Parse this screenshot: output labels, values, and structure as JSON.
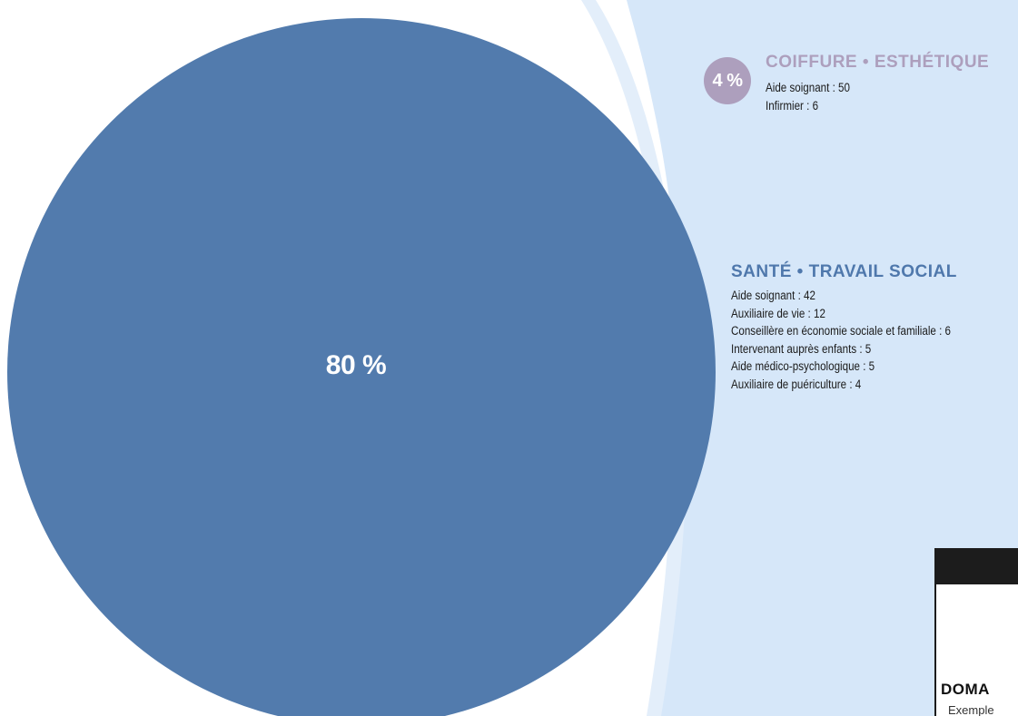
{
  "colors": {
    "main_blue": "#527bad",
    "lavender": "#ad9fbd",
    "panel_light_blue": "#d6e7f9",
    "background": "#ffffff"
  },
  "chart_data": {
    "type": "pie",
    "slices": [
      {
        "label": "SANTÉ • TRAVAIL SOCIAL",
        "value": 80,
        "display": "80 %",
        "color": "#527bad"
      },
      {
        "label": "COIFFURE • ESTHÉTIQUE",
        "value": 4,
        "display": "4 %",
        "color": "#ad9fbd"
      }
    ],
    "categories": {
      "coiffure": {
        "title": "COIFFURE • ESTHÉTIQUE",
        "percent": "4 %",
        "items": [
          "Aide soignant : 50",
          "Infirmier : 6"
        ]
      },
      "sante": {
        "title": "SANTÉ • TRAVAIL SOCIAL",
        "percent": "80 %",
        "items": [
          "Aide soignant : 42",
          "Auxiliaire de vie : 12",
          "Conseillère en économie sociale et familiale : 6",
          "Intervenant auprès enfants : 5",
          "Aide médico-psychologique : 5",
          "Auxiliaire de puériculture : 4"
        ]
      }
    }
  },
  "footer": {
    "domain_partial": "DOMA",
    "example_partial": "Exemple"
  }
}
